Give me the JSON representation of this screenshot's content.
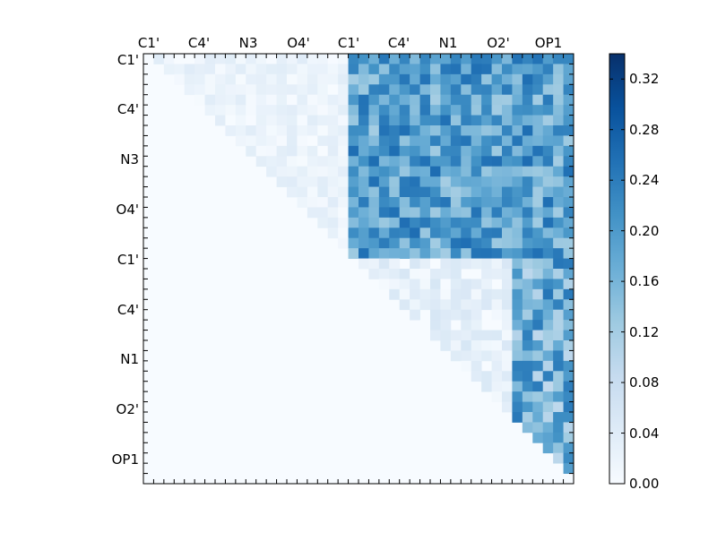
{
  "chart_data": {
    "type": "heatmap",
    "title": "",
    "xlabel": "",
    "ylabel": "",
    "x_tick_labels": [
      "C1'",
      "C4'",
      "N3",
      "O4'",
      "C1'",
      "C4'",
      "N1",
      "O2'",
      "OP1"
    ],
    "y_tick_labels": [
      "C1'",
      "C4'",
      "N3",
      "O4'",
      "C1'",
      "C4'",
      "N1",
      "O2'",
      "OP1"
    ],
    "grid_size": 42,
    "blocks": [
      {
        "rows": [
          0,
          20
        ],
        "cols": [
          20,
          42
        ],
        "upper_triangular": false,
        "base": 0.19,
        "amp": 0.07,
        "seed": 3
      },
      {
        "rows": [
          0,
          20
        ],
        "cols": [
          0,
          20
        ],
        "upper_triangular": true,
        "base": 0.02,
        "amp": 0.02,
        "seed": 11
      },
      {
        "rows": [
          20,
          42
        ],
        "cols": [
          20,
          42
        ],
        "upper_triangular": true,
        "base": 0.025,
        "amp": 0.03,
        "seed": 19
      },
      {
        "rows": [
          20,
          42
        ],
        "cols": [
          36,
          42
        ],
        "upper_triangular": true,
        "base": 0.17,
        "amp": 0.08,
        "seed": 27
      }
    ],
    "colorbar": {
      "min": 0.0,
      "max": 0.34,
      "ticks": [
        "0.00",
        "0.04",
        "0.08",
        "0.12",
        "0.16",
        "0.20",
        "0.24",
        "0.28",
        "0.32"
      ],
      "colormap": "Blues"
    },
    "colors": {
      "low": "#f7fbff",
      "high": "#08306b"
    }
  }
}
